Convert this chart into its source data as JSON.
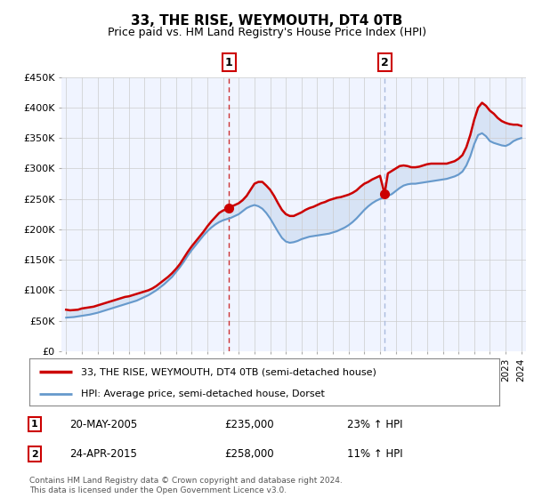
{
  "title": "33, THE RISE, WEYMOUTH, DT4 0TB",
  "subtitle": "Price paid vs. HM Land Registry's House Price Index (HPI)",
  "legend_line1": "33, THE RISE, WEYMOUTH, DT4 0TB (semi-detached house)",
  "legend_line2": "HPI: Average price, semi-detached house, Dorset",
  "annotation1_label": "1",
  "annotation1_date": "20-MAY-2005",
  "annotation1_price": "£235,000",
  "annotation1_hpi": "23% ↑ HPI",
  "annotation1_year": 2005.38,
  "annotation1_value": 235000,
  "annotation2_label": "2",
  "annotation2_date": "24-APR-2015",
  "annotation2_price": "£258,000",
  "annotation2_hpi": "11% ↑ HPI",
  "annotation2_year": 2015.29,
  "annotation2_value": 258000,
  "footer": "Contains HM Land Registry data © Crown copyright and database right 2024.\nThis data is licensed under the Open Government Licence v3.0.",
  "red_color": "#cc0000",
  "blue_color": "#6699cc",
  "fill_color": "#ddeeff",
  "dashed1_color": "#cc3333",
  "dashed2_color": "#aabbdd",
  "bg_color": "#ffffff",
  "chart_bg": "#f0f4ff",
  "grid_color": "#cccccc",
  "ylim": [
    0,
    450000
  ],
  "xlim": [
    1994.7,
    2024.3
  ],
  "yticks": [
    0,
    50000,
    100000,
    150000,
    200000,
    250000,
    300000,
    350000,
    400000,
    450000
  ],
  "ytick_labels": [
    "£0",
    "£50K",
    "£100K",
    "£150K",
    "£200K",
    "£250K",
    "£300K",
    "£350K",
    "£400K",
    "£450K"
  ],
  "red_x": [
    1995.0,
    1995.25,
    1995.5,
    1995.75,
    1996.0,
    1996.25,
    1996.5,
    1996.75,
    1997.0,
    1997.25,
    1997.5,
    1997.75,
    1998.0,
    1998.25,
    1998.5,
    1998.75,
    1999.0,
    1999.25,
    1999.5,
    1999.75,
    2000.0,
    2000.25,
    2000.5,
    2000.75,
    2001.0,
    2001.25,
    2001.5,
    2001.75,
    2002.0,
    2002.25,
    2002.5,
    2002.75,
    2003.0,
    2003.25,
    2003.5,
    2003.75,
    2004.0,
    2004.25,
    2004.5,
    2004.75,
    2005.0,
    2005.25,
    2005.38,
    2005.5,
    2005.75,
    2006.0,
    2006.25,
    2006.5,
    2006.75,
    2007.0,
    2007.25,
    2007.5,
    2007.75,
    2008.0,
    2008.25,
    2008.5,
    2008.75,
    2009.0,
    2009.25,
    2009.5,
    2009.75,
    2010.0,
    2010.25,
    2010.5,
    2010.75,
    2011.0,
    2011.25,
    2011.5,
    2011.75,
    2012.0,
    2012.25,
    2012.5,
    2012.75,
    2013.0,
    2013.25,
    2013.5,
    2013.75,
    2014.0,
    2014.25,
    2014.5,
    2014.75,
    2015.0,
    2015.29,
    2015.5,
    2015.75,
    2016.0,
    2016.25,
    2016.5,
    2016.75,
    2017.0,
    2017.25,
    2017.5,
    2017.75,
    2018.0,
    2018.25,
    2018.5,
    2018.75,
    2019.0,
    2019.25,
    2019.5,
    2019.75,
    2020.0,
    2020.25,
    2020.5,
    2020.75,
    2021.0,
    2021.25,
    2021.5,
    2021.75,
    2022.0,
    2022.25,
    2022.5,
    2022.75,
    2023.0,
    2023.25,
    2023.5,
    2023.75,
    2024.0
  ],
  "red_y": [
    68000,
    67000,
    67500,
    68000,
    70000,
    71000,
    72000,
    73000,
    75000,
    77000,
    79000,
    81000,
    83000,
    85000,
    87000,
    89000,
    90000,
    92000,
    94000,
    96000,
    98000,
    100000,
    103000,
    107000,
    112000,
    117000,
    122000,
    128000,
    135000,
    143000,
    153000,
    163000,
    172000,
    180000,
    188000,
    196000,
    205000,
    213000,
    220000,
    227000,
    231000,
    233000,
    235000,
    237000,
    240000,
    243000,
    248000,
    255000,
    265000,
    275000,
    278000,
    278000,
    272000,
    265000,
    255000,
    243000,
    232000,
    225000,
    222000,
    222000,
    225000,
    228000,
    232000,
    235000,
    237000,
    240000,
    243000,
    245000,
    248000,
    250000,
    252000,
    253000,
    255000,
    257000,
    260000,
    264000,
    270000,
    275000,
    278000,
    282000,
    285000,
    288000,
    258000,
    292000,
    296000,
    300000,
    304000,
    305000,
    304000,
    302000,
    302000,
    303000,
    305000,
    307000,
    308000,
    308000,
    308000,
    308000,
    308000,
    310000,
    312000,
    316000,
    322000,
    335000,
    355000,
    380000,
    400000,
    408000,
    403000,
    395000,
    390000,
    383000,
    378000,
    375000,
    373000,
    372000,
    372000,
    370000
  ],
  "blue_x": [
    1995.0,
    1995.25,
    1995.5,
    1995.75,
    1996.0,
    1996.25,
    1996.5,
    1996.75,
    1997.0,
    1997.25,
    1997.5,
    1997.75,
    1998.0,
    1998.25,
    1998.5,
    1998.75,
    1999.0,
    1999.25,
    1999.5,
    1999.75,
    2000.0,
    2000.25,
    2000.5,
    2000.75,
    2001.0,
    2001.25,
    2001.5,
    2001.75,
    2002.0,
    2002.25,
    2002.5,
    2002.75,
    2003.0,
    2003.25,
    2003.5,
    2003.75,
    2004.0,
    2004.25,
    2004.5,
    2004.75,
    2005.0,
    2005.25,
    2005.5,
    2005.75,
    2006.0,
    2006.25,
    2006.5,
    2006.75,
    2007.0,
    2007.25,
    2007.5,
    2007.75,
    2008.0,
    2008.25,
    2008.5,
    2008.75,
    2009.0,
    2009.25,
    2009.5,
    2009.75,
    2010.0,
    2010.25,
    2010.5,
    2010.75,
    2011.0,
    2011.25,
    2011.5,
    2011.75,
    2012.0,
    2012.25,
    2012.5,
    2012.75,
    2013.0,
    2013.25,
    2013.5,
    2013.75,
    2014.0,
    2014.25,
    2014.5,
    2014.75,
    2015.0,
    2015.5,
    2015.75,
    2016.0,
    2016.25,
    2016.5,
    2016.75,
    2017.0,
    2017.25,
    2017.5,
    2017.75,
    2018.0,
    2018.25,
    2018.5,
    2018.75,
    2019.0,
    2019.25,
    2019.5,
    2019.75,
    2020.0,
    2020.25,
    2020.5,
    2020.75,
    2021.0,
    2021.25,
    2021.5,
    2021.75,
    2022.0,
    2022.25,
    2022.5,
    2022.75,
    2023.0,
    2023.25,
    2023.5,
    2023.75,
    2024.0
  ],
  "blue_y": [
    55000,
    55500,
    56000,
    57000,
    58000,
    59000,
    60000,
    61500,
    63000,
    65000,
    67000,
    69000,
    71000,
    73000,
    75000,
    77000,
    79000,
    81000,
    83000,
    86000,
    89000,
    92000,
    96000,
    100000,
    105000,
    110000,
    116000,
    122000,
    130000,
    138000,
    147000,
    157000,
    166000,
    174000,
    182000,
    190000,
    197000,
    203000,
    208000,
    212000,
    215000,
    217000,
    219000,
    222000,
    225000,
    230000,
    235000,
    238000,
    240000,
    238000,
    234000,
    227000,
    218000,
    207000,
    196000,
    186000,
    180000,
    178000,
    179000,
    181000,
    184000,
    186000,
    188000,
    189000,
    190000,
    191000,
    192000,
    193000,
    195000,
    197000,
    200000,
    203000,
    207000,
    212000,
    218000,
    225000,
    232000,
    238000,
    243000,
    247000,
    250000,
    255000,
    258000,
    263000,
    268000,
    272000,
    274000,
    275000,
    275000,
    276000,
    277000,
    278000,
    279000,
    280000,
    281000,
    282000,
    283000,
    285000,
    287000,
    290000,
    295000,
    305000,
    320000,
    340000,
    355000,
    358000,
    353000,
    345000,
    342000,
    340000,
    338000,
    337000,
    340000,
    345000,
    348000,
    350000
  ]
}
